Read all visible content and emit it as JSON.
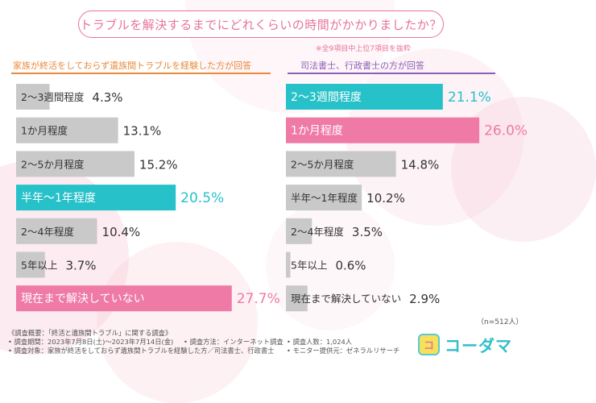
{
  "title": "トラブルを解決するまでにどれくらいの時間がかかりましたか？",
  "title_note": "※全9項目中上位7項目を抜粋",
  "sample_note": "（n=512人）",
  "colors": {
    "gray": "#c9c9c9",
    "teal": "#27c1c9",
    "pink": "#ee7aa5",
    "accent": "#e8729a",
    "orange": "#e88a3c",
    "purple": "#8e5fb8"
  },
  "chart_data": [
    {
      "type": "bar",
      "title": "家族が終活をしておらず遺族間トラブルを経験した方が回答",
      "categories": [
        "2〜3週間程度",
        "1か月程度",
        "2〜5か月程度",
        "半年〜1年程度",
        "2〜4年程度",
        "5年以上",
        "現在まで解決していない"
      ],
      "values": [
        4.3,
        13.1,
        15.2,
        20.5,
        10.4,
        3.7,
        27.7
      ],
      "value_labels": [
        "4.3%",
        "13.1%",
        "15.2%",
        "20.5%",
        "10.4%",
        "3.7%",
        "27.7%"
      ],
      "highlight": [
        "none",
        "none",
        "none",
        "teal",
        "none",
        "none",
        "pink"
      ],
      "xlim": [
        0,
        30
      ]
    },
    {
      "type": "bar",
      "title": "司法書士、行政書士の方が回答",
      "categories": [
        "2〜3週間程度",
        "1か月程度",
        "2〜5か月程度",
        "半年〜1年程度",
        "2〜4年程度",
        "5年以上",
        "現在まで解決していない"
      ],
      "values": [
        21.1,
        26.0,
        14.8,
        10.2,
        3.5,
        0.6,
        2.9
      ],
      "value_labels": [
        "21.1%",
        "26.0%",
        "14.8%",
        "10.2%",
        "3.5%",
        "0.6%",
        "2.9%"
      ],
      "highlight": [
        "teal",
        "pink",
        "none",
        "none",
        "none",
        "none",
        "none"
      ],
      "xlim": [
        0,
        30
      ]
    }
  ],
  "footer": {
    "line1": "《調査概要：「終活と遺族間トラブル」に関する調査》",
    "period": "• 調査期間：2023年7月8日(土)〜2023年7月14日(金)",
    "method": "• 調査方法：インターネット調査",
    "count": "• 調査人数：1,024人",
    "target": "• 調査対象：家族が終活をしておらず遺族間トラブルを経験した方／司法書士、行政書士",
    "provider": "• モニター提供元：ゼネラルリサーチ"
  },
  "logo": {
    "mark": "コ",
    "text": "コーダマ"
  }
}
